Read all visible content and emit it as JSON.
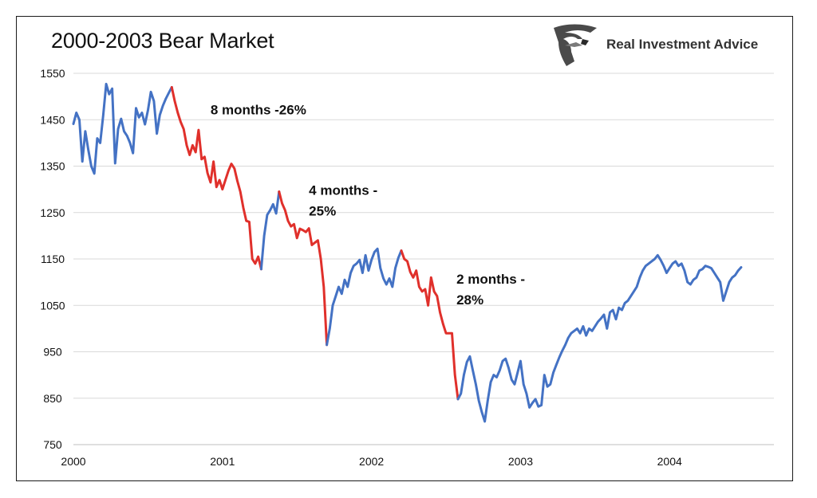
{
  "brand": {
    "name": "Real Investment Advice",
    "logo_icon": "eagle-head-icon"
  },
  "colors": {
    "up": "#4472C4",
    "down": "#E0302B",
    "grid": "#d9d9d9"
  },
  "chart_data": {
    "type": "line",
    "title": "2000-2003 Bear Market",
    "xlabel": "",
    "ylabel": "",
    "xlim": [
      2000.0,
      2004.7
    ],
    "ylim": [
      750,
      1550
    ],
    "yticks": [
      750,
      850,
      950,
      1050,
      1150,
      1250,
      1350,
      1450,
      1550
    ],
    "xticks": [
      "2000",
      "2001",
      "2002",
      "2003",
      "2004"
    ],
    "grid": true,
    "legend": "none",
    "series": [
      {
        "values": [
          [
            2000.0,
            1441
          ],
          [
            2000.02,
            1465
          ],
          [
            2000.04,
            1450
          ],
          [
            2000.06,
            1360
          ],
          [
            2000.08,
            1425
          ],
          [
            2000.1,
            1385
          ],
          [
            2000.12,
            1350
          ],
          [
            2000.14,
            1334
          ],
          [
            2000.16,
            1410
          ],
          [
            2000.18,
            1400
          ],
          [
            2000.2,
            1460
          ],
          [
            2000.22,
            1527
          ],
          [
            2000.24,
            1505
          ],
          [
            2000.26,
            1517
          ],
          [
            2000.28,
            1356
          ],
          [
            2000.3,
            1430
          ],
          [
            2000.32,
            1452
          ],
          [
            2000.34,
            1425
          ],
          [
            2000.36,
            1415
          ],
          [
            2000.38,
            1400
          ],
          [
            2000.4,
            1378
          ],
          [
            2000.42,
            1475
          ],
          [
            2000.44,
            1455
          ],
          [
            2000.46,
            1465
          ],
          [
            2000.48,
            1440
          ],
          [
            2000.5,
            1470
          ],
          [
            2000.52,
            1510
          ],
          [
            2000.54,
            1490
          ],
          [
            2000.56,
            1420
          ],
          [
            2000.58,
            1460
          ],
          [
            2000.6,
            1480
          ],
          [
            2000.62,
            1495
          ],
          [
            2000.64,
            1508
          ],
          [
            2000.66,
            1520
          ]
        ]
      },
      {
        "values": [
          [
            2000.66,
            1520
          ],
          [
            2000.68,
            1490
          ],
          [
            2000.7,
            1465
          ],
          [
            2000.72,
            1445
          ],
          [
            2000.74,
            1430
          ],
          [
            2000.76,
            1395
          ],
          [
            2000.78,
            1374
          ],
          [
            2000.8,
            1395
          ],
          [
            2000.82,
            1380
          ],
          [
            2000.84,
            1428
          ],
          [
            2000.86,
            1365
          ],
          [
            2000.88,
            1370
          ],
          [
            2000.9,
            1335
          ],
          [
            2000.92,
            1315
          ],
          [
            2000.94,
            1360
          ],
          [
            2000.96,
            1305
          ],
          [
            2000.98,
            1320
          ],
          [
            2001.0,
            1300
          ],
          [
            2001.02,
            1320
          ],
          [
            2001.04,
            1340
          ],
          [
            2001.06,
            1355
          ],
          [
            2001.08,
            1345
          ],
          [
            2001.1,
            1318
          ],
          [
            2001.12,
            1295
          ],
          [
            2001.14,
            1260
          ],
          [
            2001.16,
            1232
          ],
          [
            2001.18,
            1230
          ],
          [
            2001.2,
            1150
          ],
          [
            2001.22,
            1140
          ],
          [
            2001.24,
            1155
          ],
          [
            2001.26,
            1128
          ]
        ]
      },
      {
        "values": [
          [
            2001.26,
            1128
          ],
          [
            2001.28,
            1200
          ],
          [
            2001.3,
            1245
          ],
          [
            2001.32,
            1255
          ],
          [
            2001.34,
            1268
          ],
          [
            2001.36,
            1248
          ],
          [
            2001.38,
            1295
          ]
        ]
      },
      {
        "values": [
          [
            2001.38,
            1295
          ],
          [
            2001.4,
            1270
          ],
          [
            2001.42,
            1255
          ],
          [
            2001.44,
            1232
          ],
          [
            2001.46,
            1220
          ],
          [
            2001.48,
            1225
          ],
          [
            2001.5,
            1195
          ],
          [
            2001.52,
            1215
          ],
          [
            2001.54,
            1212
          ],
          [
            2001.56,
            1208
          ],
          [
            2001.58,
            1216
          ],
          [
            2001.6,
            1180
          ],
          [
            2001.62,
            1185
          ],
          [
            2001.64,
            1190
          ],
          [
            2001.66,
            1150
          ],
          [
            2001.68,
            1090
          ],
          [
            2001.7,
            965
          ]
        ]
      },
      {
        "values": [
          [
            2001.7,
            965
          ],
          [
            2001.72,
            1000
          ],
          [
            2001.74,
            1050
          ],
          [
            2001.76,
            1070
          ],
          [
            2001.78,
            1090
          ],
          [
            2001.8,
            1075
          ],
          [
            2001.82,
            1105
          ],
          [
            2001.84,
            1090
          ],
          [
            2001.86,
            1120
          ],
          [
            2001.88,
            1135
          ],
          [
            2001.9,
            1140
          ],
          [
            2001.92,
            1148
          ],
          [
            2001.94,
            1120
          ],
          [
            2001.96,
            1158
          ],
          [
            2001.98,
            1125
          ],
          [
            2002.0,
            1148
          ],
          [
            2002.02,
            1165
          ],
          [
            2002.04,
            1172
          ],
          [
            2002.06,
            1130
          ],
          [
            2002.08,
            1108
          ],
          [
            2002.1,
            1095
          ],
          [
            2002.12,
            1108
          ],
          [
            2002.14,
            1090
          ],
          [
            2002.16,
            1130
          ],
          [
            2002.18,
            1152
          ],
          [
            2002.2,
            1168
          ]
        ]
      },
      {
        "values": [
          [
            2002.2,
            1168
          ],
          [
            2002.22,
            1150
          ],
          [
            2002.24,
            1145
          ],
          [
            2002.26,
            1122
          ],
          [
            2002.28,
            1110
          ],
          [
            2002.3,
            1125
          ],
          [
            2002.32,
            1090
          ],
          [
            2002.34,
            1080
          ],
          [
            2002.36,
            1085
          ],
          [
            2002.38,
            1050
          ],
          [
            2002.4,
            1110
          ],
          [
            2002.42,
            1080
          ],
          [
            2002.44,
            1070
          ],
          [
            2002.46,
            1035
          ],
          [
            2002.48,
            1010
          ],
          [
            2002.5,
            990
          ],
          [
            2002.52,
            990
          ],
          [
            2002.54,
            990
          ],
          [
            2002.56,
            900
          ],
          [
            2002.58,
            848
          ]
        ]
      },
      {
        "values": [
          [
            2002.58,
            848
          ],
          [
            2002.6,
            860
          ],
          [
            2002.62,
            900
          ],
          [
            2002.64,
            928
          ],
          [
            2002.66,
            940
          ],
          [
            2002.68,
            910
          ],
          [
            2002.7,
            880
          ],
          [
            2002.72,
            845
          ],
          [
            2002.74,
            820
          ],
          [
            2002.76,
            800
          ],
          [
            2002.78,
            845
          ],
          [
            2002.8,
            885
          ],
          [
            2002.82,
            900
          ],
          [
            2002.84,
            895
          ],
          [
            2002.86,
            910
          ],
          [
            2002.88,
            930
          ],
          [
            2002.9,
            935
          ],
          [
            2002.92,
            915
          ],
          [
            2002.94,
            890
          ],
          [
            2002.96,
            880
          ],
          [
            2002.98,
            905
          ],
          [
            2003.0,
            930
          ],
          [
            2003.02,
            880
          ],
          [
            2003.04,
            860
          ],
          [
            2003.06,
            830
          ],
          [
            2003.08,
            840
          ],
          [
            2003.1,
            848
          ],
          [
            2003.12,
            832
          ],
          [
            2003.14,
            835
          ],
          [
            2003.16,
            900
          ],
          [
            2003.18,
            875
          ],
          [
            2003.2,
            880
          ],
          [
            2003.22,
            905
          ],
          [
            2003.24,
            922
          ],
          [
            2003.26,
            938
          ],
          [
            2003.28,
            952
          ],
          [
            2003.3,
            965
          ],
          [
            2003.32,
            980
          ],
          [
            2003.34,
            990
          ],
          [
            2003.36,
            995
          ],
          [
            2003.38,
            1000
          ],
          [
            2003.4,
            990
          ],
          [
            2003.42,
            1005
          ],
          [
            2003.44,
            985
          ],
          [
            2003.46,
            1000
          ],
          [
            2003.48,
            995
          ],
          [
            2003.5,
            1005
          ],
          [
            2003.52,
            1015
          ],
          [
            2003.54,
            1022
          ],
          [
            2003.56,
            1030
          ],
          [
            2003.58,
            1000
          ],
          [
            2003.6,
            1035
          ],
          [
            2003.62,
            1040
          ],
          [
            2003.64,
            1020
          ],
          [
            2003.66,
            1045
          ],
          [
            2003.68,
            1040
          ],
          [
            2003.7,
            1055
          ],
          [
            2003.72,
            1060
          ],
          [
            2003.74,
            1070
          ],
          [
            2003.76,
            1080
          ],
          [
            2003.78,
            1090
          ],
          [
            2003.8,
            1110
          ],
          [
            2003.82,
            1125
          ],
          [
            2003.84,
            1135
          ],
          [
            2003.86,
            1140
          ],
          [
            2003.88,
            1145
          ],
          [
            2003.9,
            1150
          ],
          [
            2003.92,
            1158
          ],
          [
            2003.94,
            1148
          ],
          [
            2003.96,
            1135
          ],
          [
            2003.98,
            1120
          ],
          [
            2004.0,
            1130
          ],
          [
            2004.02,
            1140
          ],
          [
            2004.04,
            1145
          ],
          [
            2004.06,
            1135
          ],
          [
            2004.08,
            1140
          ],
          [
            2004.1,
            1125
          ],
          [
            2004.12,
            1100
          ],
          [
            2004.14,
            1095
          ],
          [
            2004.16,
            1105
          ],
          [
            2004.18,
            1110
          ],
          [
            2004.2,
            1125
          ],
          [
            2004.22,
            1128
          ],
          [
            2004.24,
            1135
          ],
          [
            2004.26,
            1133
          ],
          [
            2004.28,
            1130
          ],
          [
            2004.3,
            1120
          ],
          [
            2004.32,
            1110
          ],
          [
            2004.34,
            1100
          ],
          [
            2004.36,
            1060
          ],
          [
            2004.38,
            1080
          ],
          [
            2004.4,
            1100
          ],
          [
            2004.42,
            1110
          ],
          [
            2004.44,
            1115
          ],
          [
            2004.46,
            1125
          ],
          [
            2004.48,
            1132
          ]
        ]
      }
    ],
    "annotations": [
      {
        "lines": [
          "8 months -26%"
        ],
        "at": [
          2000.92,
          1462
        ]
      },
      {
        "lines": [
          "4 months -",
          "25%"
        ],
        "at": [
          2001.58,
          1288
        ]
      },
      {
        "lines": [
          "2 months -",
          "28%"
        ],
        "at": [
          2002.57,
          1097
        ]
      }
    ]
  }
}
